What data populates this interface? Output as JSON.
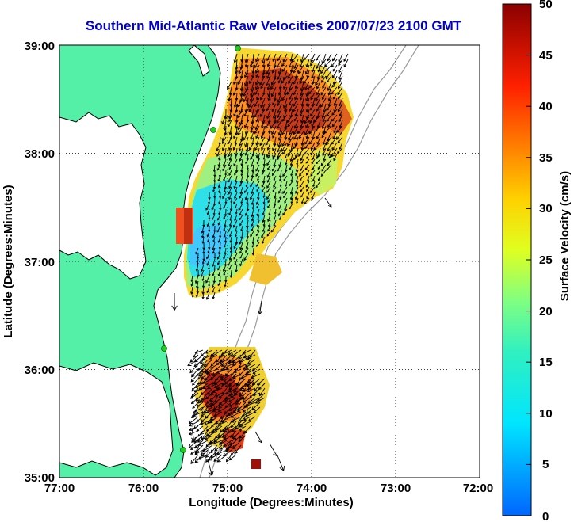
{
  "chart_data": {
    "type": "heatmap",
    "title": "Southern Mid-Atlantic Raw Velocities 2007/07/23 2100 GMT",
    "xlabel": "Longitude (Degrees:Minutes)",
    "ylabel": "Latitude (Degrees:Minutes)",
    "colorbar_label": "Surface Velocity (cm/s)",
    "x_ticks": [
      "77:00",
      "76:00",
      "75:00",
      "74:00",
      "73:00",
      "72:00"
    ],
    "y_ticks": [
      "39:00",
      "38:00",
      "37:00",
      "36:00",
      "35:00"
    ],
    "colorbar_ticks": [
      "50",
      "45",
      "40",
      "35",
      "30",
      "25",
      "20",
      "15",
      "10",
      "5",
      "0"
    ],
    "xlim": [
      -77,
      -72
    ],
    "ylim": [
      35,
      39
    ],
    "clim": [
      0,
      50
    ],
    "grid": true,
    "colors": {
      "land": "#55f0a8",
      "coast": "#000000",
      "bathymetry": "#999999",
      "title": "#0000cc",
      "station": "#22cc22"
    }
  }
}
